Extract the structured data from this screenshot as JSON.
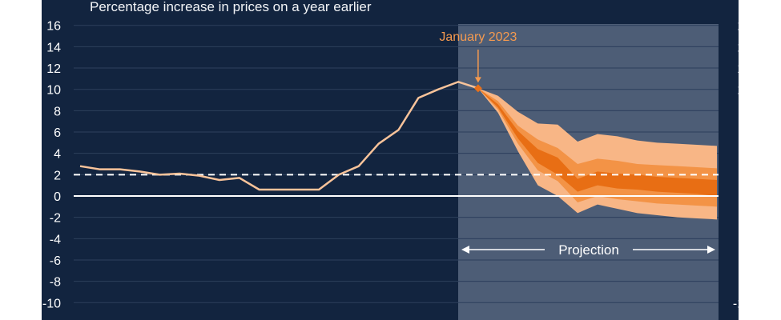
{
  "header": {
    "subtitle": "Percentage increase in prices on a year earlier"
  },
  "chart_data": {
    "type": "line",
    "ylim": [
      -12,
      16
    ],
    "yticks": [
      16,
      14,
      12,
      10,
      8,
      6,
      4,
      2,
      0,
      -2,
      -4,
      -6,
      -8,
      -10
    ],
    "grid": true,
    "colors": {
      "background": "#12243f",
      "projection_background": "#4d5d76",
      "history_line": "#f8c39a",
      "fan_outer": "#f8b686",
      "fan_middle": "#f39346",
      "fan_inner": "#e86e14",
      "marker": "#e8701a",
      "annotation": "#f59a4f",
      "target_line": "#ffffff",
      "zero_line": "#ffffff"
    },
    "history": {
      "x": [
        0,
        1,
        2,
        3,
        4,
        5,
        6,
        7,
        8,
        9,
        10,
        11,
        12,
        13,
        14,
        15,
        16,
        17,
        18,
        19,
        20
      ],
      "values": [
        2.8,
        2.5,
        2.5,
        2.3,
        2.0,
        2.1,
        1.9,
        1.5,
        1.7,
        0.6,
        0.6,
        0.6,
        0.6,
        2.0,
        2.8,
        4.9,
        6.2,
        9.2,
        10.0,
        10.7,
        10.1
      ]
    },
    "projection": {
      "x": [
        20,
        21,
        22,
        23,
        24,
        25,
        26,
        27,
        28,
        29,
        30,
        31,
        32
      ],
      "outer_upper": [
        10.1,
        9.4,
        7.9,
        6.8,
        6.7,
        5.1,
        5.8,
        5.6,
        5.2,
        5.0,
        4.9,
        4.8,
        4.7
      ],
      "middle_upper": [
        10.1,
        8.9,
        6.6,
        5.3,
        4.5,
        3.0,
        3.5,
        3.3,
        3.0,
        2.9,
        2.8,
        2.7,
        2.6
      ],
      "inner_upper": [
        10.1,
        8.6,
        6.1,
        4.4,
        3.6,
        1.6,
        2.3,
        2.1,
        2.0,
        1.8,
        1.7,
        1.6,
        1.5
      ],
      "inner_lower": [
        10.1,
        8.3,
        5.4,
        3.1,
        2.0,
        0.4,
        1.0,
        0.7,
        0.6,
        0.4,
        0.3,
        0.2,
        0.0
      ],
      "middle_lower": [
        10.1,
        8.1,
        4.9,
        2.4,
        1.4,
        -0.6,
        0.0,
        -0.3,
        -0.5,
        -0.7,
        -0.8,
        -0.9,
        -1.0
      ],
      "outer_lower": [
        10.1,
        7.8,
        4.2,
        1.0,
        0.0,
        -1.6,
        -0.8,
        -1.2,
        -1.6,
        -1.8,
        -2.0,
        -2.1,
        -2.2
      ]
    },
    "target_value": 2,
    "annotation": {
      "label": "January 2023",
      "x": 20,
      "y": 10.1
    },
    "projection_label": "Projection"
  }
}
